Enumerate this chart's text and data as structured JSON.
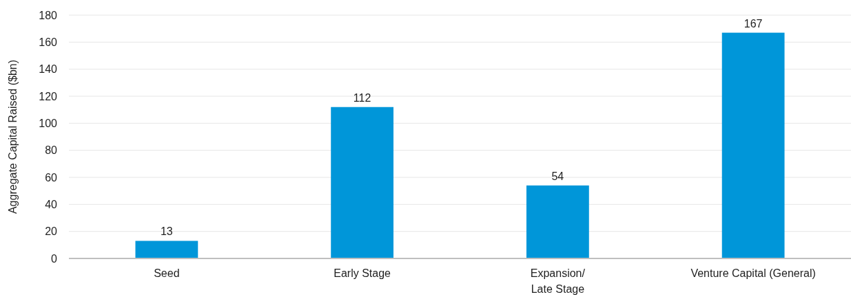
{
  "chart_data": {
    "type": "bar",
    "ylabel": "Aggregate Capital Raised ($bn)",
    "categories": [
      "Seed",
      "Early Stage",
      "Expansion/\nLate Stage",
      "Venture Capital (General)"
    ],
    "values": [
      13,
      112,
      54,
      167
    ],
    "color": "#0096d9",
    "ylim": [
      0,
      180
    ],
    "yticks": [
      0,
      20,
      40,
      60,
      80,
      100,
      120,
      140,
      160,
      180
    ],
    "grid": "y",
    "data_labels": true
  }
}
